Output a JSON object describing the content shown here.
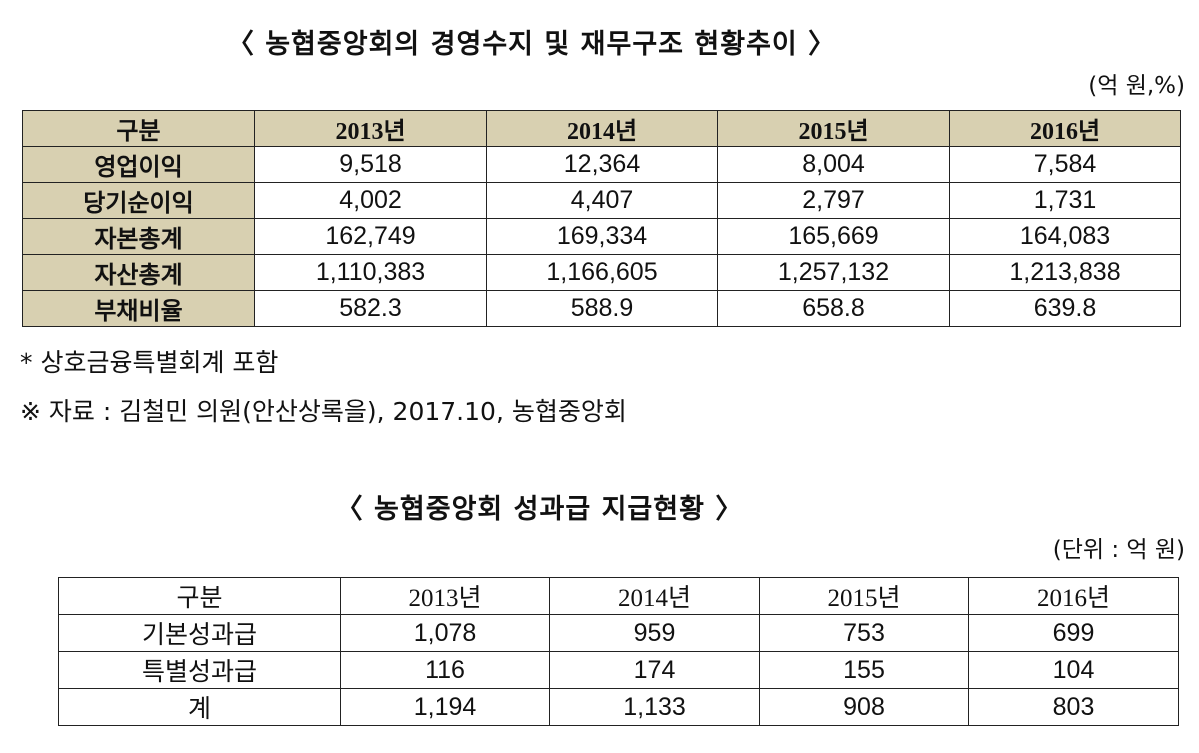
{
  "table1": {
    "title": "〈 농협중앙회의 경영수지 및 재무구조 현황추이 〉",
    "unit": "(억 원,%)",
    "headers": [
      "구분",
      "2013년",
      "2014년",
      "2015년",
      "2016년"
    ],
    "rows": [
      {
        "label": "영업이익",
        "values": [
          "9,518",
          "12,364",
          "8,004",
          "7,584"
        ]
      },
      {
        "label": "당기순이익",
        "values": [
          "4,002",
          "4,407",
          "2,797",
          "1,731"
        ]
      },
      {
        "label": "자본총계",
        "values": [
          "162,749",
          "169,334",
          "165,669",
          "164,083"
        ]
      },
      {
        "label": "자산총계",
        "values": [
          "1,110,383",
          "1,166,605",
          "1,257,132",
          "1,213,838"
        ]
      },
      {
        "label": "부채비율",
        "values": [
          "582.3",
          "588.9",
          "658.8",
          "639.8"
        ]
      }
    ],
    "notes": [
      "* 상호금융특별회계 포함",
      "※ 자료 : 김철민 의원(안산상록을), 2017.10, 농협중앙회"
    ]
  },
  "table2": {
    "title": "〈 농협중앙회 성과급 지급현황 〉",
    "unit": "(단위 : 억 원)",
    "headers": [
      "구분",
      "2013년",
      "2014년",
      "2015년",
      "2016년"
    ],
    "rows": [
      {
        "label": "기본성과급",
        "values": [
          "1,078",
          "959",
          "753",
          "699"
        ]
      },
      {
        "label": "특별성과급",
        "values": [
          "116",
          "174",
          "155",
          "104"
        ]
      },
      {
        "label": "계",
        "values": [
          "1,194",
          "1,133",
          "908",
          "803"
        ]
      }
    ]
  }
}
